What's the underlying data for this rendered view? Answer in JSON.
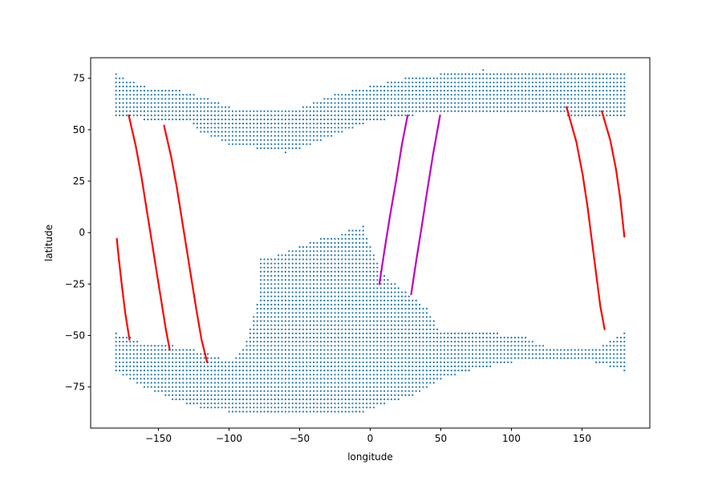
{
  "chart_data": {
    "type": "scatter",
    "title": "",
    "xlabel": "longitude",
    "ylabel": "latitude",
    "xlim": [
      -198,
      198
    ],
    "ylim": [
      -95,
      85
    ],
    "grid": false,
    "x_ticks": [
      -150,
      -100,
      -50,
      0,
      50,
      100,
      150
    ],
    "x_tick_labels": [
      "−150",
      "−100",
      "−50",
      "0",
      "50",
      "100",
      "150"
    ],
    "y_ticks": [
      -75,
      -50,
      -25,
      0,
      25,
      50,
      75
    ],
    "y_tick_labels": [
      "−75",
      "−50",
      "−25",
      "0",
      "25",
      "50",
      "75"
    ],
    "grid_points": {
      "color": "#1f77b4",
      "dlon": 2.5,
      "dlat": 2.0,
      "north_band": {
        "lon_range": [
          -180,
          180
        ],
        "top": [
          [
            -180,
            77
          ],
          [
            -175,
            75
          ],
          [
            -160,
            71
          ],
          [
            -135,
            69
          ],
          [
            -115,
            65
          ],
          [
            -100,
            61
          ],
          [
            -80,
            59
          ],
          [
            -55,
            59
          ],
          [
            -40,
            63
          ],
          [
            -25,
            67
          ],
          [
            0,
            71
          ],
          [
            25,
            75
          ],
          [
            50,
            77
          ],
          [
            80,
            79
          ],
          [
            150,
            77
          ],
          [
            180,
            77
          ]
        ],
        "bottom": [
          [
            -180,
            57
          ],
          [
            -160,
            55
          ],
          [
            -130,
            55
          ],
          [
            -120,
            49
          ],
          [
            -100,
            43
          ],
          [
            -80,
            41
          ],
          [
            -60,
            39
          ],
          [
            -50,
            41
          ],
          [
            -35,
            45
          ],
          [
            -20,
            49
          ],
          [
            -5,
            53
          ],
          [
            10,
            55
          ],
          [
            30,
            57
          ],
          [
            60,
            59
          ],
          [
            100,
            59
          ],
          [
            140,
            57
          ],
          [
            170,
            57
          ],
          [
            180,
            57
          ]
        ]
      },
      "south_blob": {
        "lon_range": [
          -180,
          180
        ],
        "top": [
          [
            -180,
            -49
          ],
          [
            -170,
            -51
          ],
          [
            -160,
            -55
          ],
          [
            -140,
            -55
          ],
          [
            -125,
            -57
          ],
          [
            -115,
            -59
          ],
          [
            -100,
            -63
          ],
          [
            -90,
            -57
          ],
          [
            -85,
            -47
          ],
          [
            -80,
            -35
          ],
          [
            -85,
            -13
          ],
          [
            -75,
            -13
          ],
          [
            -65,
            -11
          ],
          [
            -50,
            -7
          ],
          [
            -35,
            -3
          ],
          [
            -20,
            -1
          ],
          [
            -15,
            1
          ],
          [
            -5,
            3
          ],
          [
            8,
            -19
          ],
          [
            25,
            -29
          ],
          [
            40,
            -37
          ],
          [
            50,
            -49
          ],
          [
            70,
            -49
          ],
          [
            90,
            -49
          ],
          [
            110,
            -51
          ],
          [
            130,
            -57
          ],
          [
            160,
            -57
          ],
          [
            180,
            -49
          ]
        ],
        "bottom": [
          [
            -180,
            -67
          ],
          [
            -170,
            -71
          ],
          [
            -160,
            -75
          ],
          [
            -140,
            -81
          ],
          [
            -120,
            -85
          ],
          [
            -100,
            -87
          ],
          [
            -80,
            -87
          ],
          [
            -60,
            -87
          ],
          [
            -45,
            -87
          ],
          [
            -25,
            -87
          ],
          [
            -5,
            -87
          ],
          [
            10,
            -83
          ],
          [
            30,
            -79
          ],
          [
            50,
            -71
          ],
          [
            70,
            -67
          ],
          [
            100,
            -63
          ],
          [
            130,
            -61
          ],
          [
            150,
            -61
          ],
          [
            170,
            -65
          ],
          [
            180,
            -67
          ]
        ]
      }
    },
    "series": [
      {
        "color": "#ff0000",
        "segments": [
          [
            [
              -179.5,
              -3
            ],
            [
              -178,
              -13
            ],
            [
              -176,
              -25
            ],
            [
              -173.5,
              -39
            ],
            [
              -170.5,
              -52
            ]
          ],
          [
            [
              -171,
              57
            ],
            [
              -166,
              42
            ],
            [
              -162,
              27
            ],
            [
              -158.5,
              12
            ],
            [
              -155,
              -3
            ],
            [
              -151.5,
              -18
            ],
            [
              -148,
              -33
            ],
            [
              -145,
              -46
            ],
            [
              -142,
              -57
            ]
          ],
          [
            [
              -146,
              52
            ],
            [
              -141,
              37
            ],
            [
              -137,
              22
            ],
            [
              -133.5,
              7
            ],
            [
              -130,
              -8
            ],
            [
              -126.5,
              -23
            ],
            [
              -123,
              -38
            ],
            [
              -119.5,
              -52
            ],
            [
              -115.5,
              -63
            ]
          ],
          [
            [
              139,
              61
            ],
            [
              146,
              44
            ],
            [
              150.5,
              28
            ],
            [
              154,
              12
            ],
            [
              157,
              -4
            ],
            [
              160,
              -20
            ],
            [
              163,
              -36
            ],
            [
              166,
              -47
            ]
          ],
          [
            [
              164,
              59
            ],
            [
              170,
              45
            ],
            [
              174,
              31
            ],
            [
              177,
              17
            ],
            [
              180,
              -2
            ]
          ]
        ]
      },
      {
        "color": "#bf00bf",
        "segments": [
          [
            [
              6.5,
              -25
            ],
            [
              10,
              -9
            ],
            [
              14,
              8
            ],
            [
              18.5,
              26
            ],
            [
              22.5,
              43
            ],
            [
              26.5,
              57
            ]
          ],
          [
            [
              29,
              -30
            ],
            [
              32.5,
              -14
            ],
            [
              36.5,
              3
            ],
            [
              40.5,
              21
            ],
            [
              44.5,
              38
            ],
            [
              49.5,
              57
            ]
          ]
        ]
      }
    ]
  }
}
